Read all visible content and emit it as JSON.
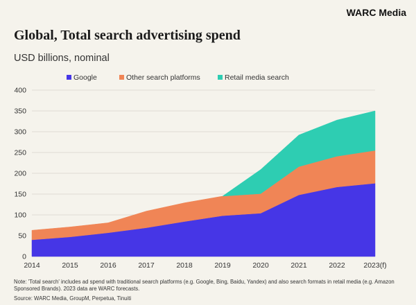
{
  "brand": "WARC Media",
  "note": "Note: 'Total search' includes ad spend with traditional search platforms (e.g. Google, Bing, Baidu, Yandex) and also search formats in retail media (e.g. Amazon Sponsored Brands). 2023 data are WARC forecasts.",
  "source": "Source: WARC Media, GroupM, Perpetua, Tinuiti",
  "colors": {
    "background": "#f5f3ec",
    "grid": "#d6d3cb",
    "google": "#4636e6",
    "other": "#f08556",
    "retail": "#2ecdb2"
  },
  "chart_data": {
    "type": "area",
    "stacked": true,
    "title": "Global, Total search advertising spend",
    "subtitle": "USD billions, nominal",
    "xlabel": "",
    "ylabel": "",
    "categories": [
      "2014",
      "2015",
      "2016",
      "2017",
      "2018",
      "2019",
      "2020",
      "2021",
      "2022",
      "2023(f)"
    ],
    "ylim": [
      0,
      400
    ],
    "yticks": [
      "0",
      "50",
      "100",
      "150",
      "200",
      "250",
      "300",
      "350",
      "400"
    ],
    "grid": true,
    "legend_position": "top-left",
    "series": [
      {
        "name": "Google",
        "color": "#4636e6",
        "values": [
          40,
          47,
          57,
          69,
          84,
          98,
          104,
          148,
          167,
          176
        ]
      },
      {
        "name": "Other search platforms",
        "color": "#f08556",
        "values": [
          23,
          24,
          24,
          40,
          45,
          47,
          47,
          68,
          74,
          79
        ]
      },
      {
        "name": "Retail media search",
        "color": "#2ecdb2",
        "values": [
          0,
          0,
          0,
          0,
          0,
          0,
          58,
          76,
          87,
          95
        ]
      }
    ]
  }
}
